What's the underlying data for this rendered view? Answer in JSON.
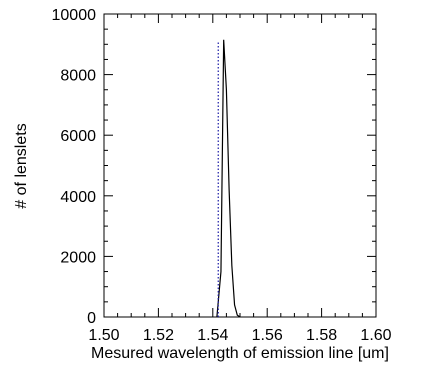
{
  "chart_data": {
    "type": "line",
    "title": "",
    "xlabel": "Mesured wavelength of emission line [um]",
    "ylabel": "# of lenslets",
    "xlim": [
      1.5,
      1.6
    ],
    "ylim": [
      0,
      10000
    ],
    "x_ticks": [
      "1.50",
      "1.52",
      "1.54",
      "1.56",
      "1.58",
      "1.60"
    ],
    "y_ticks": [
      "0",
      "2000",
      "4000",
      "6000",
      "8000",
      "10000"
    ],
    "x_tick_values": [
      1.5,
      1.52,
      1.54,
      1.56,
      1.58,
      1.6
    ],
    "y_tick_values": [
      0,
      2000,
      4000,
      6000,
      8000,
      10000
    ],
    "grid": false,
    "legend": "none",
    "series": [
      {
        "style": "solid",
        "color": "#000000",
        "x": [
          1.5415,
          1.543,
          1.544,
          1.545,
          1.546,
          1.547,
          1.548,
          1.549,
          1.55
        ],
        "y": [
          0,
          1500,
          9150,
          7500,
          4200,
          1700,
          400,
          60,
          0
        ]
      },
      {
        "style": "dotted",
        "color": "#1a1aa6",
        "x": [
          1.542,
          1.542
        ],
        "y": [
          0,
          9100
        ]
      }
    ]
  }
}
